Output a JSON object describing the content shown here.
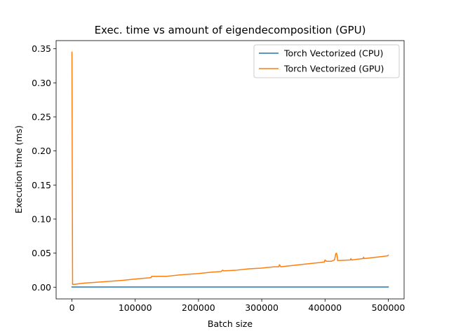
{
  "chart_data": {
    "type": "line",
    "title": "Exec. time vs amount of eigendecomposition (GPU)",
    "xlabel": "Batch size",
    "ylabel": "Execution time (ms)",
    "xlim": [
      -25000,
      525000
    ],
    "ylim": [
      -0.0172,
      0.362
    ],
    "xticks": [
      0,
      100000,
      200000,
      300000,
      400000,
      500000
    ],
    "yticks": [
      0.0,
      0.05,
      0.1,
      0.15,
      0.2,
      0.25,
      0.3,
      0.35
    ],
    "xtick_labels": [
      "0",
      "100000",
      "200000",
      "300000",
      "400000",
      "500000"
    ],
    "ytick_labels": [
      "0.00",
      "0.05",
      "0.10",
      "0.15",
      "0.20",
      "0.25",
      "0.30",
      "0.35"
    ],
    "grid": false,
    "legend_position": "top-right",
    "series": [
      {
        "name": "Torch Vectorized (CPU)",
        "color": "#1f77b4",
        "x": [
          0,
          500000
        ],
        "y": [
          0.0003,
          0.0003
        ]
      },
      {
        "name": "Torch Vectorized (GPU)",
        "color": "#ff7f0e",
        "x": [
          0,
          1000,
          2000,
          20000,
          50000,
          80000,
          100000,
          125000,
          126000,
          130000,
          140000,
          142000,
          150000,
          170000,
          200000,
          220000,
          236000,
          238000,
          240000,
          260000,
          280000,
          300000,
          320000,
          327000,
          328000,
          330000,
          350000,
          370000,
          390000,
          399000,
          400000,
          402000,
          410000,
          415000,
          417000,
          418000,
          419000,
          420000,
          440000,
          441000,
          442000,
          460000,
          461000,
          462000,
          480000,
          490000,
          499000,
          500000
        ],
        "y": [
          0.345,
          0.004,
          0.004,
          0.006,
          0.008,
          0.01,
          0.012,
          0.014,
          0.016,
          0.016,
          0.016,
          0.016,
          0.016,
          0.018,
          0.02,
          0.022,
          0.023,
          0.025,
          0.024,
          0.025,
          0.027,
          0.028,
          0.03,
          0.03,
          0.033,
          0.03,
          0.032,
          0.034,
          0.036,
          0.037,
          0.04,
          0.038,
          0.038,
          0.04,
          0.049,
          0.05,
          0.047,
          0.039,
          0.04,
          0.042,
          0.04,
          0.042,
          0.044,
          0.042,
          0.044,
          0.045,
          0.046,
          0.047
        ]
      }
    ]
  }
}
